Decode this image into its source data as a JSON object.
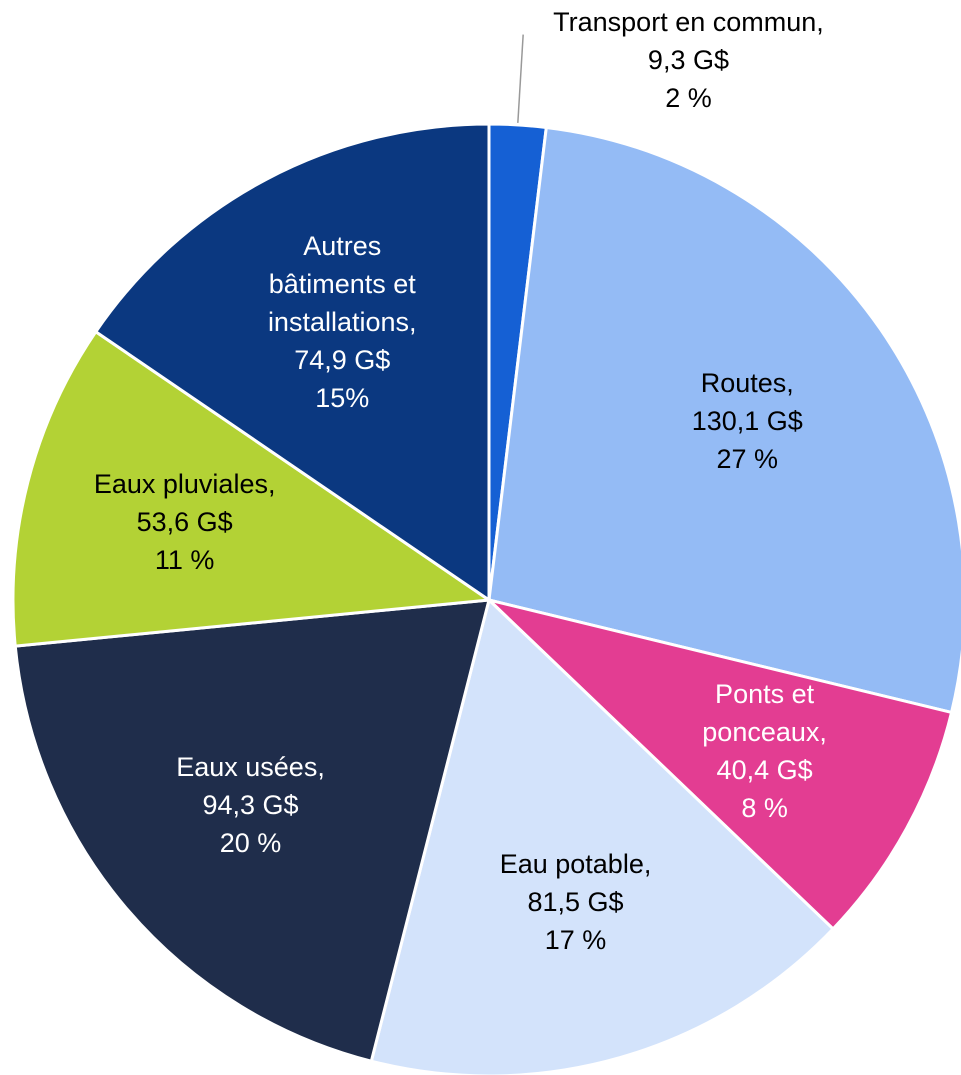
{
  "chart_data": {
    "type": "pie",
    "categories": [
      "Transport en commun,",
      "Routes,",
      "Ponts et\nponceaux,",
      "Eau potable,",
      "Eaux usées,",
      "Eaux pluviales,",
      "Autres\nbâtiments et\ninstallations,"
    ],
    "values": [
      9.3,
      130.1,
      40.4,
      81.5,
      94.3,
      53.6,
      74.9
    ],
    "value_labels": [
      "9,3 G$",
      "130,1 G$",
      "40,4 G$",
      "81,5 G$",
      "94,3 G$",
      "53,6 G$",
      "74,9 G$"
    ],
    "percent": [
      2,
      27,
      8,
      17,
      20,
      11,
      15
    ],
    "percent_labels": [
      "2 %",
      "27 %",
      "8 %",
      "17 %",
      "20 %",
      "11 %",
      "15%"
    ],
    "colors": [
      "#1560d4",
      "#94bbf5",
      "#e33d92",
      "#d3e3fb",
      "#1f2d4b",
      "#b3d235",
      "#0b3880"
    ],
    "label_colors": [
      "#000000",
      "#000000",
      "#ffffff",
      "#000000",
      "#ffffff",
      "#000000",
      "#ffffff"
    ]
  }
}
